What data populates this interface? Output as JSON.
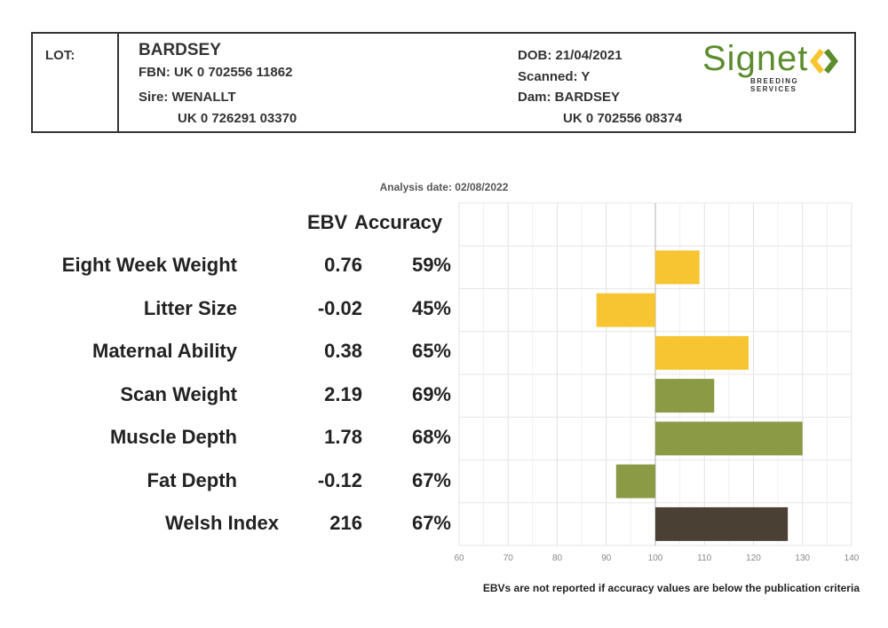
{
  "header": {
    "lot_label": "LOT:",
    "name": "BARDSEY",
    "fbn": "FBN: UK 0 702556 11862",
    "sire": "Sire: WENALLT",
    "sire_id": "UK 0 726291 03370",
    "dob": "DOB: 21/04/2021",
    "scanned": "Scanned: Y",
    "dam": "Dam: BARDSEY",
    "dam_id": "UK 0 702556 08374"
  },
  "logo": {
    "word": "Signet",
    "sub": "BREEDING SERVICES",
    "color": "#5d8c2e"
  },
  "analysis_date": "Analysis date: 02/08/2022",
  "columns": {
    "ebv": "EBV",
    "accuracy": "Accuracy"
  },
  "footnote": "EBVs are not reported if accuracy values are below the publication criteria",
  "chart_data": {
    "type": "bar",
    "orientation": "horizontal",
    "baseline": 100,
    "xlim": [
      60,
      140
    ],
    "xticks": [
      "60",
      "70",
      "80",
      "90",
      "100",
      "110",
      "120",
      "130",
      "140"
    ],
    "grid": true,
    "categories": [
      "Eight Week Weight",
      "Litter Size",
      "Maternal Ability",
      "Scan Weight",
      "Muscle Depth",
      "Fat Depth",
      "Welsh Index"
    ],
    "ebv": [
      "0.76",
      "-0.02",
      "0.38",
      "2.19",
      "1.78",
      "-0.12",
      "216"
    ],
    "accuracy": [
      "59%",
      "45%",
      "65%",
      "69%",
      "68%",
      "67%",
      "67%"
    ],
    "values": [
      109,
      88,
      119,
      112,
      130,
      92,
      127
    ],
    "colors": [
      "#f7c531",
      "#f7c531",
      "#f7c531",
      "#8a9a45",
      "#8a9a45",
      "#8a9a45",
      "#4b4034"
    ]
  }
}
